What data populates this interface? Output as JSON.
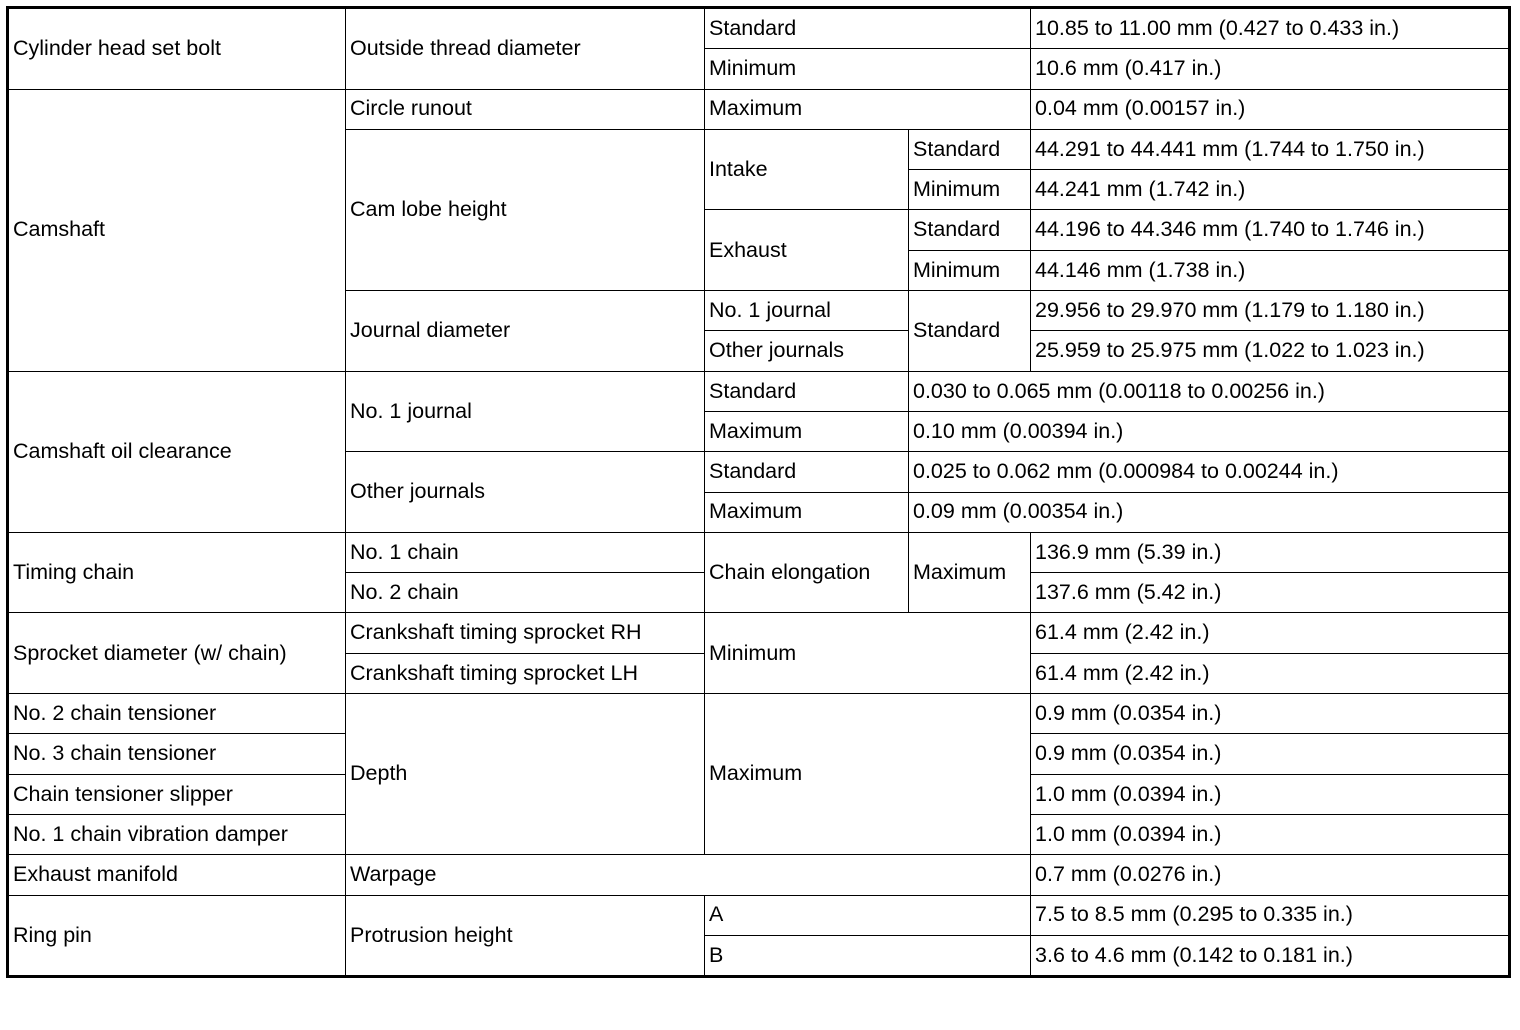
{
  "rows": [
    [
      "Cylinder head set bolt",
      "Outside thread diameter",
      "Standard",
      "10.85 to 11.00 mm (0.427 to 0.433 in.)"
    ],
    [
      "Minimum",
      "10.6 mm (0.417 in.)"
    ],
    [
      "Camshaft",
      "Circle runout",
      "Maximum",
      "0.04 mm (0.00157 in.)"
    ],
    [
      "Cam lobe height",
      "Intake",
      "Standard",
      "44.291 to 44.441 mm (1.744 to 1.750 in.)"
    ],
    [
      "Minimum",
      "44.241 mm (1.742 in.)"
    ],
    [
      "Exhaust",
      "Standard",
      "44.196 to 44.346 mm (1.740 to 1.746 in.)"
    ],
    [
      "Minimum",
      "44.146 mm (1.738 in.)"
    ],
    [
      "Journal diameter",
      "No. 1 journal",
      "Standard",
      "29.956 to 29.970 mm (1.179 to 1.180 in.)"
    ],
    [
      "Other journals",
      "25.959 to 25.975 mm (1.022 to 1.023 in.)"
    ],
    [
      "Camshaft oil clearance",
      "No. 1 journal",
      "Standard",
      "0.030 to 0.065 mm (0.00118 to 0.00256 in.)"
    ],
    [
      "Maximum",
      "0.10 mm (0.00394 in.)"
    ],
    [
      "Other journals",
      "Standard",
      "0.025 to 0.062 mm (0.000984 to 0.00244 in.)"
    ],
    [
      "Maximum",
      "0.09 mm (0.00354 in.)"
    ],
    [
      "Timing chain",
      "No. 1 chain",
      "Chain elongation",
      "Maximum",
      "136.9 mm (5.39 in.)"
    ],
    [
      "No. 2 chain",
      "137.6 mm (5.42 in.)"
    ],
    [
      "Sprocket diameter (w/ chain)",
      "Crankshaft timing sprocket RH",
      "Minimum",
      "61.4 mm (2.42 in.)"
    ],
    [
      "Crankshaft timing sprocket LH",
      "61.4 mm (2.42 in.)"
    ],
    [
      "No. 2 chain tensioner",
      "Depth",
      "Maximum",
      "0.9 mm (0.0354 in.)"
    ],
    [
      "No. 3 chain tensioner",
      "0.9 mm (0.0354 in.)"
    ],
    [
      "Chain tensioner slipper",
      "1.0 mm (0.0394 in.)"
    ],
    [
      "No. 1 chain vibration damper",
      "1.0 mm (0.0394 in.)"
    ],
    [
      "Exhaust manifold",
      "Warpage",
      "0.7 mm (0.0276 in.)"
    ],
    [
      "Ring pin",
      "Protrusion height",
      "A",
      "7.5 to 8.5 mm (0.295 to 0.335 in.)"
    ],
    [
      "B",
      "3.6 to 4.6 mm (0.142 to 0.181 in.)"
    ]
  ]
}
